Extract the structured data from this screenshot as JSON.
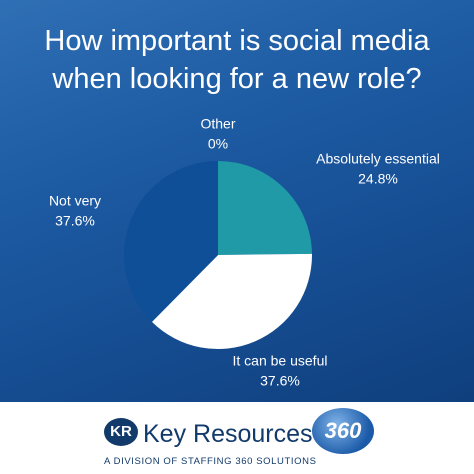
{
  "chart_data": {
    "type": "pie",
    "title": "How important is social media when looking for a new role?",
    "categories": [
      "Absolutely essential",
      "It can be useful",
      "Not very",
      "Other"
    ],
    "values": [
      24.8,
      37.6,
      37.6,
      0
    ],
    "value_labels": [
      "24.8%",
      "37.6%",
      "37.6%",
      "0%"
    ],
    "colors": [
      "#1f9aa6",
      "#ffffff",
      "#0e4f97",
      "#7aa6d6"
    ]
  },
  "footer": {
    "logo_mark": "KR",
    "brand": "Key Resources",
    "tagline": "A DIVISION OF STAFFING 360 SOLUTIONS",
    "partner_logo": "360"
  }
}
